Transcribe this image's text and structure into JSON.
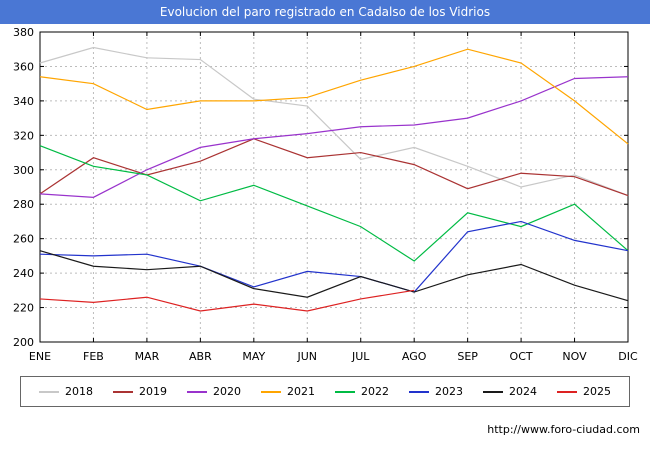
{
  "footer": {
    "url": "http://www.foro-ciudad.com"
  },
  "colors": {
    "titlebar_bg": "#4a77d4",
    "titlebar_text": "#ffffff",
    "grid": "#bcbcbc",
    "axis": "#000000"
  },
  "chart_data": {
    "type": "line",
    "title": "Evolucion del paro registrado en Cadalso de los Vidrios",
    "xlabel": "",
    "ylabel": "",
    "categories": [
      "ENE",
      "FEB",
      "MAR",
      "ABR",
      "MAY",
      "JUN",
      "JUL",
      "AGO",
      "SEP",
      "OCT",
      "NOV",
      "DIC"
    ],
    "ylim": [
      200,
      380
    ],
    "ytick_step": 20,
    "grid": true,
    "legend_position": "bottom",
    "series": [
      {
        "name": "2018",
        "color": "#c8c8c8",
        "values": [
          362,
          371,
          365,
          364,
          341,
          337,
          306,
          313,
          302,
          290,
          297,
          285
        ]
      },
      {
        "name": "2019",
        "color": "#aa3333",
        "values": [
          286,
          307,
          297,
          305,
          318,
          307,
          310,
          303,
          289,
          298,
          296,
          285
        ]
      },
      {
        "name": "2020",
        "color": "#9933cc",
        "values": [
          286,
          284,
          300,
          313,
          318,
          321,
          325,
          326,
          330,
          340,
          353,
          354
        ]
      },
      {
        "name": "2021",
        "color": "#ffa500",
        "values": [
          354,
          350,
          335,
          340,
          340,
          342,
          352,
          360,
          370,
          362,
          340,
          315
        ]
      },
      {
        "name": "2022",
        "color": "#00bb44",
        "values": [
          314,
          302,
          297,
          282,
          291,
          279,
          267,
          247,
          275,
          267,
          280,
          253
        ]
      },
      {
        "name": "2023",
        "color": "#2233cc",
        "values": [
          251,
          250,
          251,
          244,
          232,
          241,
          238,
          229,
          264,
          270,
          259,
          253
        ]
      },
      {
        "name": "2024",
        "color": "#1a1a1a",
        "values": [
          253,
          244,
          242,
          244,
          231,
          226,
          238,
          229,
          239,
          245,
          233,
          224
        ]
      },
      {
        "name": "2025",
        "color": "#dd2222",
        "values": [
          225,
          223,
          226,
          218,
          222,
          218,
          225,
          230
        ]
      }
    ]
  }
}
